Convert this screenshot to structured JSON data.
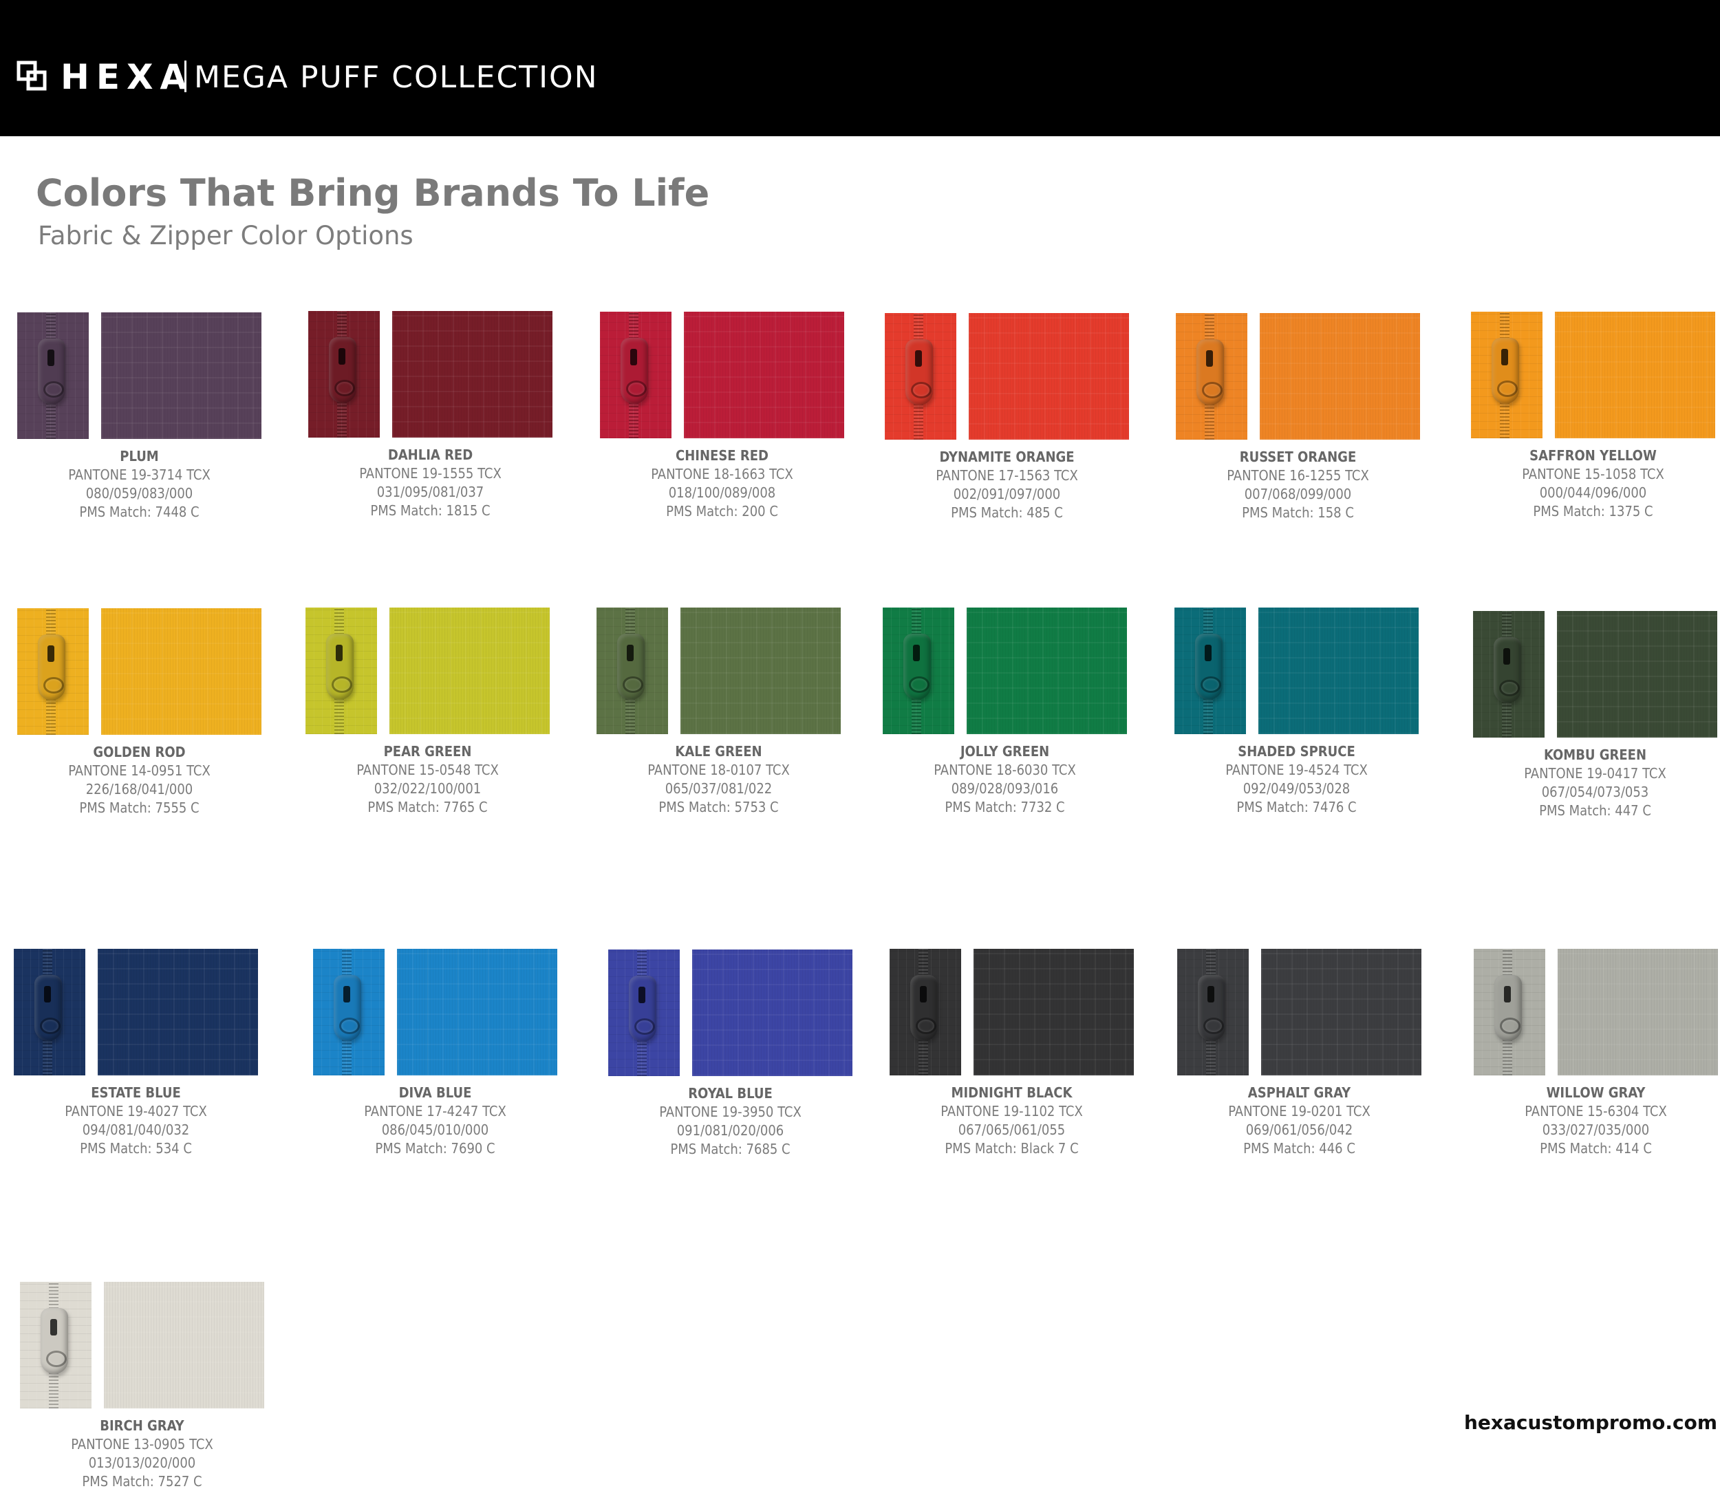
{
  "header": {
    "brand": "HEXA",
    "collection": "MEGA PUFF COLLECTION",
    "logo_icon": "hexa-logo-icon"
  },
  "title": "Colors That Bring Brands To Life",
  "subtitle": "Fabric & Zipper Color Options",
  "swatches": [
    {
      "name": "PLUM",
      "pantone": "PANTONE 19-3714 TCX",
      "code": "080/059/083/000",
      "pms": "PMS Match: 7448 C",
      "color": "#574159"
    },
    {
      "name": "DAHLIA RED",
      "pantone": "PANTONE 19-1555 TCX",
      "code": "031/095/081/037",
      "pms": "PMS Match: 1815 C",
      "color": "#761d28"
    },
    {
      "name": "CHINESE RED",
      "pantone": "PANTONE 18-1663 TCX",
      "code": "018/100/089/008",
      "pms": "PMS Match: 200 C",
      "color": "#bb1d38"
    },
    {
      "name": "DYNAMITE  ORANGE",
      "pantone": "PANTONE 17-1563 TCX",
      "code": "002/091/097/000",
      "pms": "PMS Match: 485 C",
      "color": "#e43b2c"
    },
    {
      "name": "RUSSET ORANGE",
      "pantone": "PANTONE 16-1255 TCX",
      "code": "007/068/099/000",
      "pms": "PMS Match: 158 C",
      "color": "#ee8424"
    },
    {
      "name": "SAFFRON  YELLOW",
      "pantone": "PANTONE 15-1058 TCX",
      "code": "000/044/096/000",
      "pms": "PMS Match: 1375 C",
      "color": "#f3991d"
    },
    {
      "name": "GOLDEN ROD",
      "pantone": "PANTONE 14-0951 TCX",
      "code": "226/168/041/000",
      "pms": "PMS Match: 7555 C",
      "color": "#eeb020"
    },
    {
      "name": "PEAR GREEN",
      "pantone": "PANTONE 15-0548 TCX",
      "code": "032/022/100/001",
      "pms": "PMS Match: 7765 C",
      "color": "#c6c52c"
    },
    {
      "name": "KALE GREEN",
      "pantone": "PANTONE 18-0107 TCX",
      "code": "065/037/081/022",
      "pms": "PMS Match: 5753 C",
      "color": "#5c7245"
    },
    {
      "name": "JOLLY GREEN",
      "pantone": "PANTONE 18-6030 TCX",
      "code": "089/028/093/016",
      "pms": "PMS Match: 7732 C",
      "color": "#107c45"
    },
    {
      "name": "SHADED SPRUCE",
      "pantone": "PANTONE 19-4524 TCX",
      "code": "092/049/053/028",
      "pms": "PMS Match: 7476 C",
      "color": "#0b6c78"
    },
    {
      "name": "KOMBU GREEN",
      "pantone": "PANTONE 19-0417 TCX",
      "code": "067/054/073/053",
      "pms": "PMS Match: 447 C",
      "color": "#3a4a35"
    },
    {
      "name": "ESTATE BLUE",
      "pantone": "PANTONE 19-4027 TCX",
      "code": "094/081/040/032",
      "pms": "PMS Match: 534 C",
      "color": "#1a3360"
    },
    {
      "name": "DIVA BLUE",
      "pantone": "PANTONE 17-4247 TCX",
      "code": "086/045/010/000",
      "pms": "PMS Match: 7690 C",
      "color": "#1b84c8"
    },
    {
      "name": "ROYAL BLUE",
      "pantone": "PANTONE 19-3950 TCX",
      "code": "091/081/020/006",
      "pms": "PMS Match: 7685 C",
      "color": "#3c45a4"
    },
    {
      "name": "MIDNIGHT BLACK",
      "pantone": "PANTONE 19-1102 TCX",
      "code": "067/065/061/055",
      "pms": "PMS Match: Black 7 C",
      "color": "#333334"
    },
    {
      "name": "ASPHALT GRAY",
      "pantone": "PANTONE 19-0201 TCX",
      "code": "069/061/056/042",
      "pms": "PMS Match: 446 C",
      "color": "#3c3d40"
    },
    {
      "name": "WILLOW GRAY",
      "pantone": "PANTONE 15-6304 TCX",
      "code": "033/027/035/000",
      "pms": "PMS Match: 414 C",
      "color": "#adaea6"
    },
    {
      "name": "BIRCH GRAY",
      "pantone": "PANTONE 13-0905 TCX",
      "code": "013/013/020/000",
      "pms": "PMS Match: 7527 C",
      "color": "#dedbd2"
    }
  ],
  "website": "hexacustompromo.com"
}
